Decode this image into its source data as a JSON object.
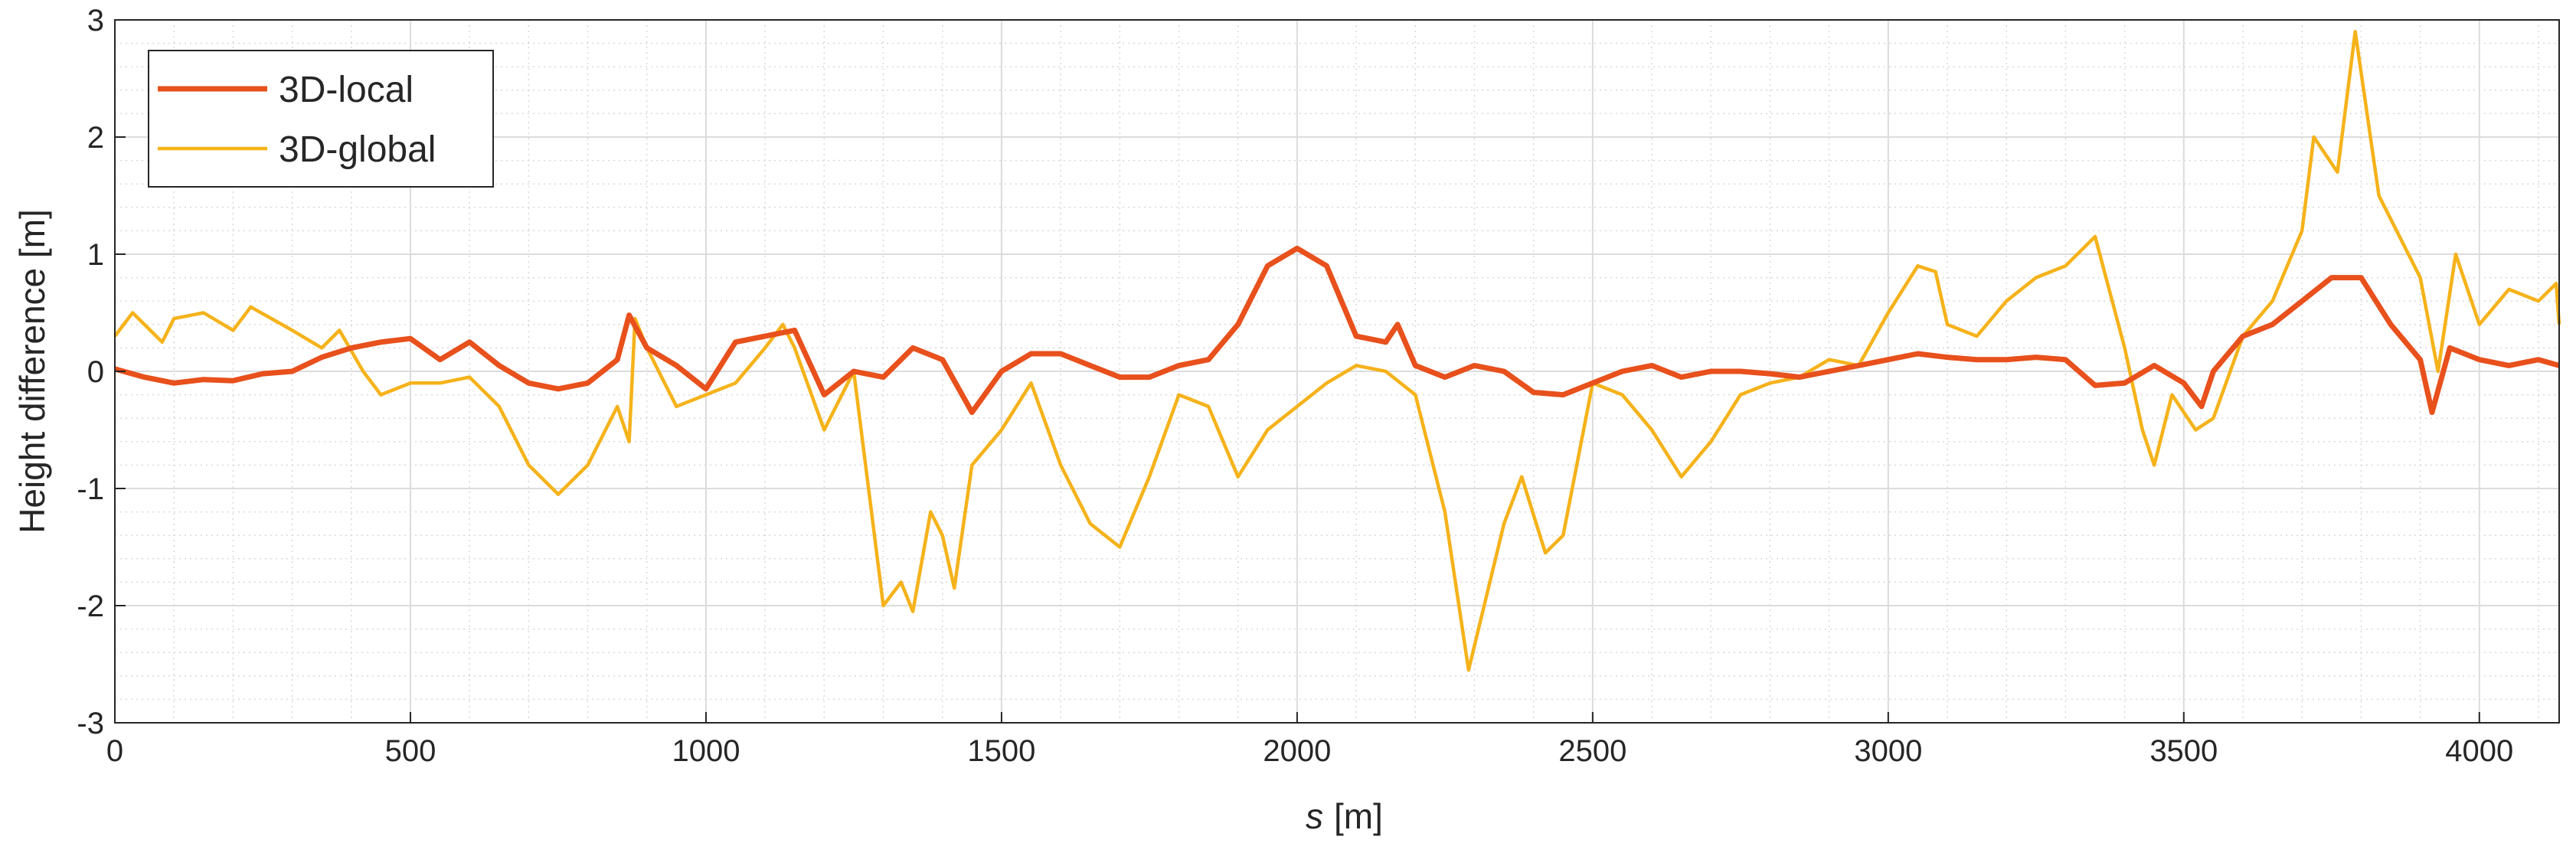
{
  "chart_data": {
    "type": "line",
    "x_label_symbol": "s",
    "x_label_unit": "[m]",
    "y_label": "Height difference [m]",
    "xlim": [
      0,
      4135
    ],
    "ylim": [
      -3,
      3
    ],
    "xticks": [
      0,
      500,
      1000,
      1500,
      2000,
      2500,
      3000,
      3500,
      4000
    ],
    "yticks": [
      -3,
      -2,
      -1,
      0,
      1,
      2,
      3
    ],
    "grid": true,
    "minor_grid": true,
    "legend": "upper-left",
    "series": [
      {
        "name": "3D-local",
        "color": "#e8501c",
        "x": [
          0,
          50,
          100,
          150,
          200,
          250,
          300,
          350,
          400,
          450,
          500,
          550,
          600,
          650,
          700,
          750,
          800,
          850,
          870,
          900,
          950,
          1000,
          1050,
          1100,
          1150,
          1200,
          1250,
          1300,
          1350,
          1400,
          1450,
          1500,
          1550,
          1600,
          1650,
          1700,
          1750,
          1800,
          1850,
          1900,
          1950,
          2000,
          2050,
          2100,
          2150,
          2170,
          2200,
          2250,
          2300,
          2350,
          2400,
          2450,
          2500,
          2550,
          2600,
          2650,
          2700,
          2750,
          2800,
          2850,
          2900,
          2950,
          3000,
          3050,
          3100,
          3150,
          3200,
          3250,
          3300,
          3350,
          3400,
          3450,
          3500,
          3530,
          3550,
          3600,
          3650,
          3700,
          3750,
          3800,
          3850,
          3900,
          3920,
          3950,
          4000,
          4050,
          4100,
          4135
        ],
        "values": [
          0.02,
          -0.05,
          -0.1,
          -0.07,
          -0.08,
          -0.02,
          0.0,
          0.12,
          0.2,
          0.25,
          0.28,
          0.1,
          0.25,
          0.05,
          -0.1,
          -0.15,
          -0.1,
          0.1,
          0.48,
          0.2,
          0.05,
          -0.15,
          0.25,
          0.3,
          0.35,
          -0.2,
          0.0,
          -0.05,
          0.2,
          0.1,
          -0.35,
          0.0,
          0.15,
          0.15,
          0.05,
          -0.05,
          -0.05,
          0.05,
          0.1,
          0.4,
          0.9,
          1.05,
          0.9,
          0.3,
          0.25,
          0.4,
          0.05,
          -0.05,
          0.05,
          0.0,
          -0.18,
          -0.2,
          -0.1,
          0.0,
          0.05,
          -0.05,
          0.0,
          0.0,
          -0.02,
          -0.05,
          0.0,
          0.05,
          0.1,
          0.15,
          0.12,
          0.1,
          0.1,
          0.12,
          0.1,
          -0.12,
          -0.1,
          0.05,
          -0.1,
          -0.3,
          0.0,
          0.3,
          0.4,
          0.6,
          0.8,
          0.8,
          0.4,
          0.1,
          -0.35,
          0.2,
          0.1,
          0.05,
          0.1,
          0.05
        ]
      },
      {
        "name": "3D-global",
        "color": "#f5b21a",
        "x": [
          0,
          30,
          80,
          100,
          150,
          200,
          230,
          300,
          350,
          380,
          420,
          450,
          500,
          550,
          600,
          650,
          700,
          750,
          800,
          850,
          870,
          880,
          900,
          950,
          1000,
          1050,
          1100,
          1130,
          1150,
          1200,
          1250,
          1280,
          1300,
          1330,
          1350,
          1380,
          1400,
          1420,
          1450,
          1500,
          1550,
          1600,
          1650,
          1700,
          1750,
          1800,
          1850,
          1900,
          1950,
          2000,
          2050,
          2100,
          2150,
          2200,
          2250,
          2290,
          2350,
          2380,
          2420,
          2450,
          2500,
          2550,
          2600,
          2650,
          2700,
          2750,
          2800,
          2850,
          2900,
          2950,
          3000,
          3050,
          3080,
          3100,
          3150,
          3200,
          3250,
          3300,
          3350,
          3400,
          3430,
          3450,
          3480,
          3520,
          3550,
          3600,
          3650,
          3700,
          3720,
          3760,
          3790,
          3830,
          3900,
          3930,
          3960,
          4000,
          4050,
          4100,
          4130,
          4135
        ],
        "values": [
          0.3,
          0.5,
          0.25,
          0.45,
          0.5,
          0.35,
          0.55,
          0.35,
          0.2,
          0.35,
          0.0,
          -0.2,
          -0.1,
          -0.1,
          -0.05,
          -0.3,
          -0.8,
          -1.05,
          -0.8,
          -0.3,
          -0.6,
          0.45,
          0.2,
          -0.3,
          -0.2,
          -0.1,
          0.2,
          0.4,
          0.2,
          -0.5,
          0.0,
          -1.2,
          -2.0,
          -1.8,
          -2.05,
          -1.2,
          -1.4,
          -1.85,
          -0.8,
          -0.5,
          -0.1,
          -0.8,
          -1.3,
          -1.5,
          -0.9,
          -0.2,
          -0.3,
          -0.9,
          -0.5,
          -0.3,
          -0.1,
          0.05,
          0.0,
          -0.2,
          -1.2,
          -2.55,
          -1.3,
          -0.9,
          -1.55,
          -1.4,
          -0.1,
          -0.2,
          -0.5,
          -0.9,
          -0.6,
          -0.2,
          -0.1,
          -0.05,
          0.1,
          0.05,
          0.5,
          0.9,
          0.85,
          0.4,
          0.3,
          0.6,
          0.8,
          0.9,
          1.15,
          0.2,
          -0.5,
          -0.8,
          -0.2,
          -0.5,
          -0.4,
          0.3,
          0.6,
          1.2,
          2.0,
          1.7,
          2.9,
          1.5,
          0.8,
          0.0,
          1.0,
          0.4,
          0.7,
          0.6,
          0.75,
          0.4
        ]
      }
    ]
  }
}
